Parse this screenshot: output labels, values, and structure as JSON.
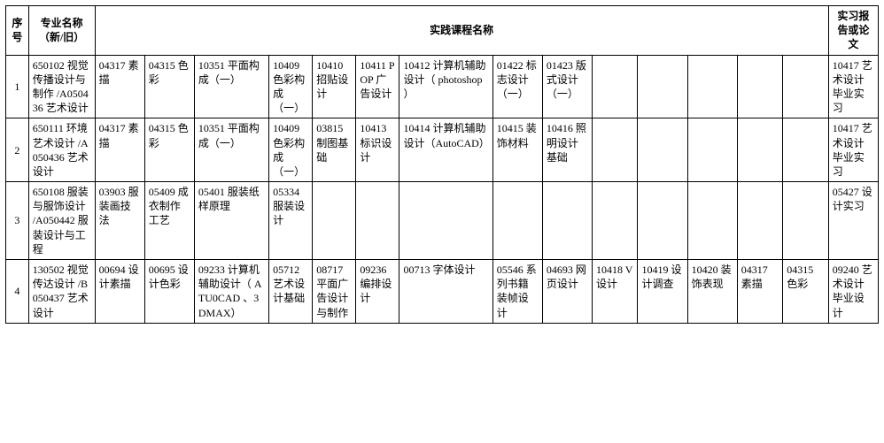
{
  "headers": {
    "seq": "序号",
    "major": "专业名称（新/旧）",
    "practice": "实践课程名称",
    "report": "实习报告或论文"
  },
  "rows": [
    {
      "seq": "1",
      "major": "650102 视觉传播设计与制作 /A050436 艺术设计",
      "c1": "04317 素描",
      "c2": "04315 色彩",
      "c3": "10351 平面构成（一）",
      "c4": "10409 色彩构成（一）",
      "c5": "10410 招贴设计",
      "c6": "10411 POP 广告设计",
      "c7": "10412 计算机辅助设计（ photoshop ）",
      "c8": "01422 标志设计（一）",
      "c9": "01423 版式设计（一）",
      "c10": "",
      "c11": "",
      "c12": "",
      "c13": "",
      "c14": "",
      "report": "10417 艺术设计毕业实习"
    },
    {
      "seq": "2",
      "major": "650111 环境艺术设计 /A050436 艺术设计",
      "c1": "04317 素描",
      "c2": "04315 色彩",
      "c3": "10351 平面构成（一）",
      "c4": "10409 色彩构成（一）",
      "c5": "03815 制图基础",
      "c6": "10413 标识设计",
      "c7": "10414 计算机辅助设计（AutoCAD）",
      "c8": "10415 装饰材料",
      "c9": "10416 照明设计基础",
      "c10": "",
      "c11": "",
      "c12": "",
      "c13": "",
      "c14": "",
      "report": "10417 艺术设计毕业实习"
    },
    {
      "seq": "3",
      "major": "650108 服装与服饰设计 /A050442 服装设计与工程",
      "c1": "03903 服装画技法",
      "c2": "05409 成衣制作工艺",
      "c3": "05401 服装纸样原理",
      "c4": "05334 服装设计",
      "c5": "",
      "c6": "",
      "c7": "",
      "c8": "",
      "c9": "",
      "c10": "",
      "c11": "",
      "c12": "",
      "c13": "",
      "c14": "",
      "report": "05427 设计实习"
    },
    {
      "seq": "4",
      "major": "130502 视觉传达设计 /B050437 艺术设计",
      "c1": "00694 设计素描",
      "c2": "00695 设计色彩",
      "c3": "09233 计算机辅助设计（ ATU0CAD 、3DMAX）",
      "c4": "05712 艺术设计基础",
      "c5": "08717 平面广告设计与制作",
      "c6": "09236 编排设计",
      "c7": "00713 字体设计",
      "c8": "05546 系列书籍装帧设计",
      "c9": "04693 网页设计",
      "c10": "10418 V 设计",
      "c11": "10419 设计调查",
      "c12": "10420 装饰表现",
      "c13": "04317 素描",
      "c14": "04315 色彩",
      "report": "09240 艺术设计毕业设计"
    }
  ]
}
